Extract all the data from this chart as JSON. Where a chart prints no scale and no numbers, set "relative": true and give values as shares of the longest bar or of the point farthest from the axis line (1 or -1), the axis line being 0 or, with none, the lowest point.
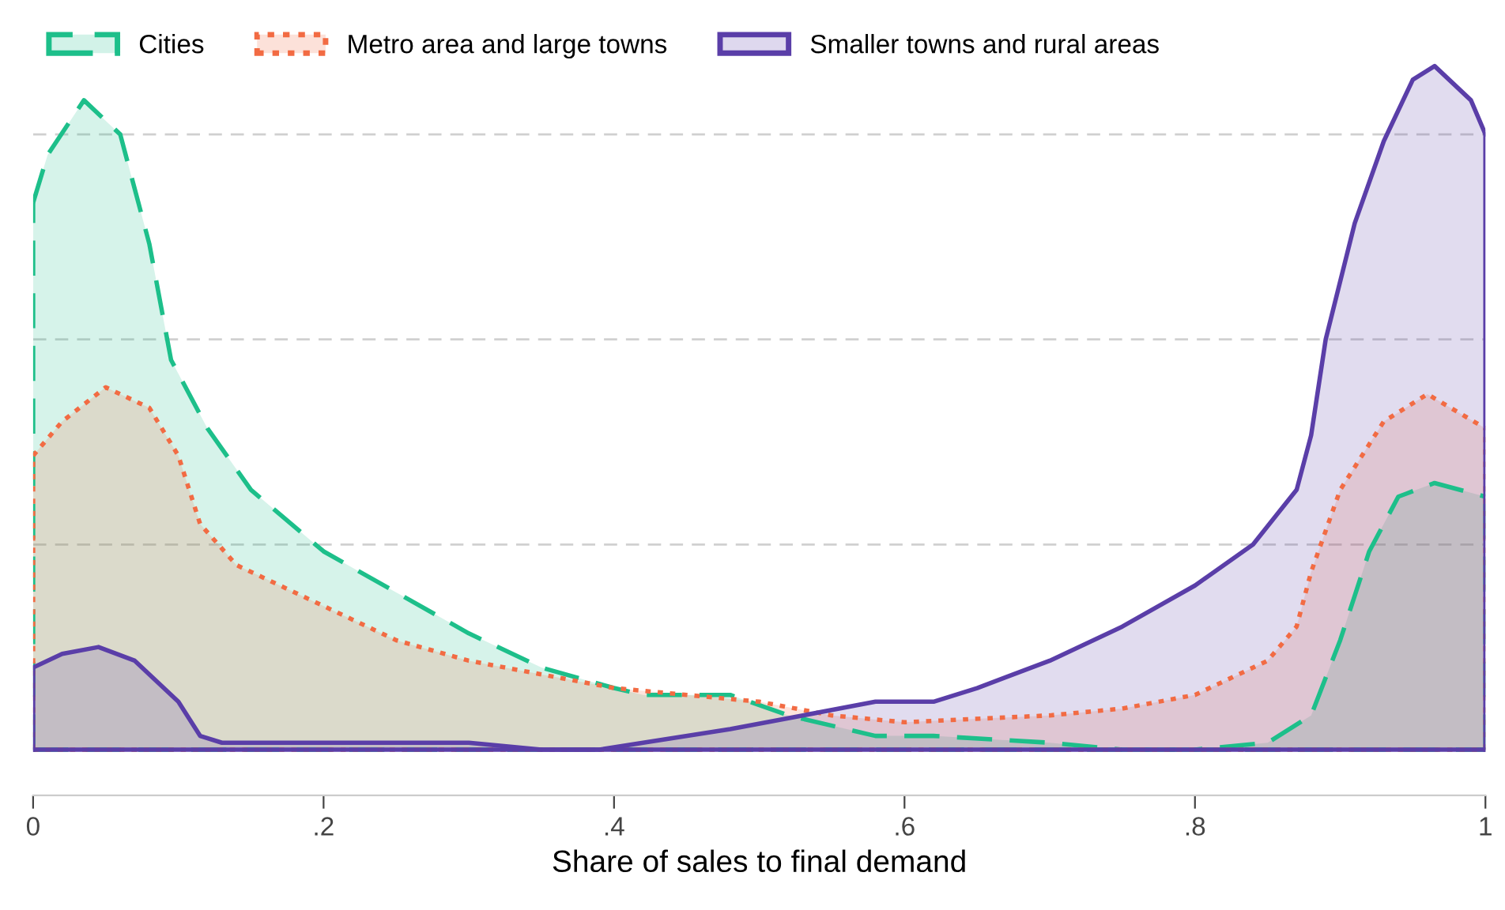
{
  "chart_data": {
    "type": "area",
    "relative": true,
    "xlabel": "Share of sales to final demand",
    "xlim": [
      0,
      1
    ],
    "xticks": [
      0,
      {
        "value": 0.2,
        "label": ".2"
      },
      {
        "value": 0.4,
        "label": ".4"
      },
      {
        "value": 0.6,
        "label": ".6"
      },
      {
        "value": 0.8,
        "label": ".8"
      },
      1
    ],
    "tick_labels": "x",
    "grid": "y",
    "legend": "top left",
    "series": [
      {
        "name": "Cities",
        "color": "#1dbf8a",
        "line_style": "dashed",
        "x": [
          0,
          0.01,
          0.035,
          0.06,
          0.08,
          0.095,
          0.12,
          0.15,
          0.2,
          0.25,
          0.3,
          0.35,
          0.4,
          0.42,
          0.45,
          0.48,
          0.52,
          0.58,
          0.62,
          0.7,
          0.75,
          0.8,
          0.85,
          0.88,
          0.9,
          0.92,
          0.94,
          0.965,
          1
        ],
        "values": [
          0.8,
          0.87,
          0.95,
          0.9,
          0.74,
          0.57,
          0.47,
          0.38,
          0.29,
          0.23,
          0.17,
          0.12,
          0.09,
          0.08,
          0.08,
          0.08,
          0.05,
          0.02,
          0.02,
          0.01,
          0,
          0,
          0.01,
          0.05,
          0.16,
          0.29,
          0.37,
          0.39,
          0.37
        ]
      },
      {
        "name": "Metro area and large towns",
        "color": "#f26b43",
        "line_style": "dotted",
        "x": [
          0,
          0.02,
          0.05,
          0.08,
          0.1,
          0.115,
          0.14,
          0.2,
          0.25,
          0.3,
          0.35,
          0.4,
          0.45,
          0.5,
          0.55,
          0.6,
          0.7,
          0.75,
          0.8,
          0.85,
          0.87,
          0.88,
          0.9,
          0.93,
          0.96,
          1
        ],
        "values": [
          0.43,
          0.48,
          0.53,
          0.5,
          0.43,
          0.33,
          0.27,
          0.21,
          0.16,
          0.13,
          0.11,
          0.09,
          0.08,
          0.07,
          0.05,
          0.04,
          0.05,
          0.06,
          0.08,
          0.13,
          0.18,
          0.26,
          0.38,
          0.48,
          0.52,
          0.47
        ]
      },
      {
        "name": "Smaller towns and rural areas",
        "color": "#5a3ea8",
        "line_style": "solid",
        "x": [
          0,
          0.02,
          0.045,
          0.07,
          0.1,
          0.115,
          0.13,
          0.2,
          0.26,
          0.3,
          0.35,
          0.39,
          0.42,
          0.48,
          0.53,
          0.58,
          0.62,
          0.65,
          0.7,
          0.75,
          0.8,
          0.84,
          0.87,
          0.88,
          0.89,
          0.91,
          0.93,
          0.95,
          0.965,
          0.99,
          1
        ],
        "values": [
          0.12,
          0.14,
          0.15,
          0.13,
          0.07,
          0.02,
          0.01,
          0.01,
          0.01,
          0.01,
          0,
          0,
          0.01,
          0.03,
          0.05,
          0.07,
          0.07,
          0.09,
          0.13,
          0.18,
          0.24,
          0.3,
          0.38,
          0.46,
          0.6,
          0.77,
          0.89,
          0.98,
          1,
          0.95,
          0.9
        ]
      }
    ]
  }
}
